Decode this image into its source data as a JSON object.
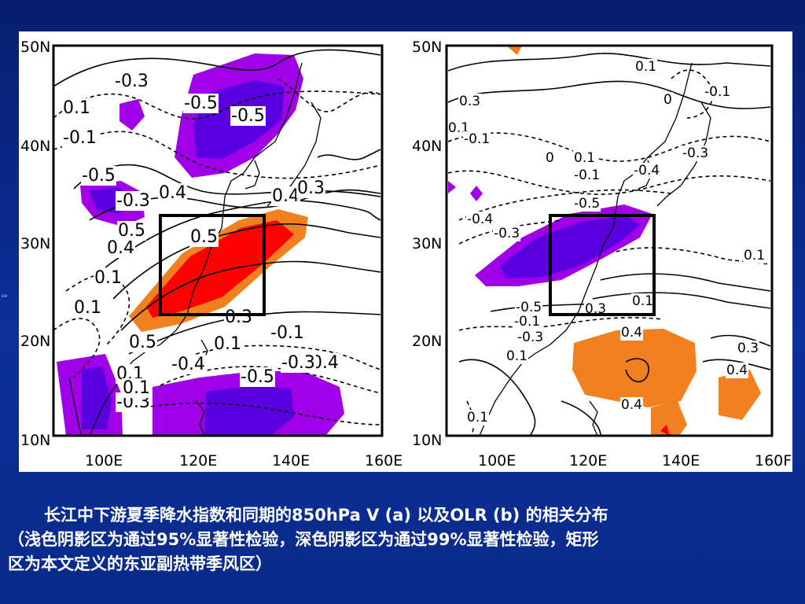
{
  "slide": {
    "caption_line1": "长江中下游夏季降水指数和同期的850hPa V (a) 以及OLR (b) 的相关分布",
    "caption_line2": "（浅色阴影区为通过95%显著性检验，深色阴影区为通过99%显著性检验，矩形",
    "caption_line3": "区为本文定义的东亚副热带季风区）",
    "side_mark": "sw"
  },
  "colors": {
    "background": "#0b2a8c",
    "neg_99": "#5a00e0",
    "neg_95": "#a000e8",
    "pos_95": "#f08020",
    "pos_99": "#ff0000",
    "frame": "#000000"
  },
  "axes": {
    "lat_ticks": [
      "50N",
      "40N",
      "30N",
      "20N",
      "10N"
    ],
    "lon_ticks_a": [
      "100E",
      "120E",
      "140E",
      "160E"
    ],
    "lon_ticks_b": [
      "100E",
      "120E",
      "140E",
      "160F"
    ]
  },
  "panel_a": {
    "labels": [
      "-0.3",
      "-0.5",
      "-0.5",
      "0.1",
      "-0.1",
      "-0.5",
      "-0.3",
      "0.4",
      "0.4",
      "0.3",
      "0.5",
      "0.4",
      "0.1",
      "0.1",
      "0.5",
      "0.3",
      "0.1",
      "-0.1",
      "-0.4",
      "-0.5",
      "-0.3",
      "-0.4",
      "0.1",
      "-0.3",
      "0.5",
      "0.1"
    ]
  },
  "panel_b": {
    "labels": [
      "0.1",
      "0.3",
      "0.1",
      "-0.1",
      "0",
      "-0.1",
      "-0.3",
      "0.1",
      "-0.1",
      "-0.4",
      "-0.5",
      "-0.4",
      "-0.3",
      "0.1",
      "0",
      "-0.5",
      "0.3",
      "0.1",
      "-0.1",
      "0.4",
      "0.3",
      "0.4",
      "0.4",
      "0.1",
      "0.1",
      "-0.3"
    ]
  }
}
